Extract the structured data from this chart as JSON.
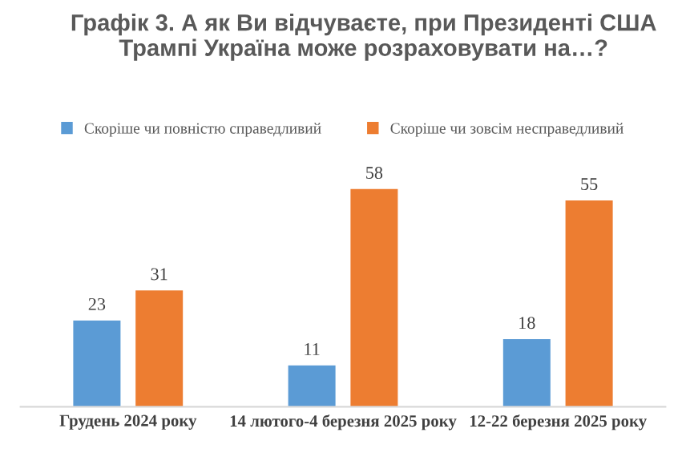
{
  "chart_data": {
    "type": "bar",
    "title": "Графік 3. А як Ви відчуваєте, при Президенті США\nТрампі Україна може розраховувати на…?",
    "categories": [
      "Грудень 2024 року",
      "14 лютого-4 березня 2025 року",
      "12-22 березня 2025 року"
    ],
    "series": [
      {
        "name": "Скоріше чи повністю справедливий",
        "color": "#5b9bd5",
        "values": [
          23,
          11,
          18
        ]
      },
      {
        "name": "Скоріше чи зовсім несправедливий",
        "color": "#ed7d31",
        "values": [
          31,
          58,
          55
        ]
      }
    ],
    "data_labels": true,
    "legend": "top",
    "grid": false
  }
}
